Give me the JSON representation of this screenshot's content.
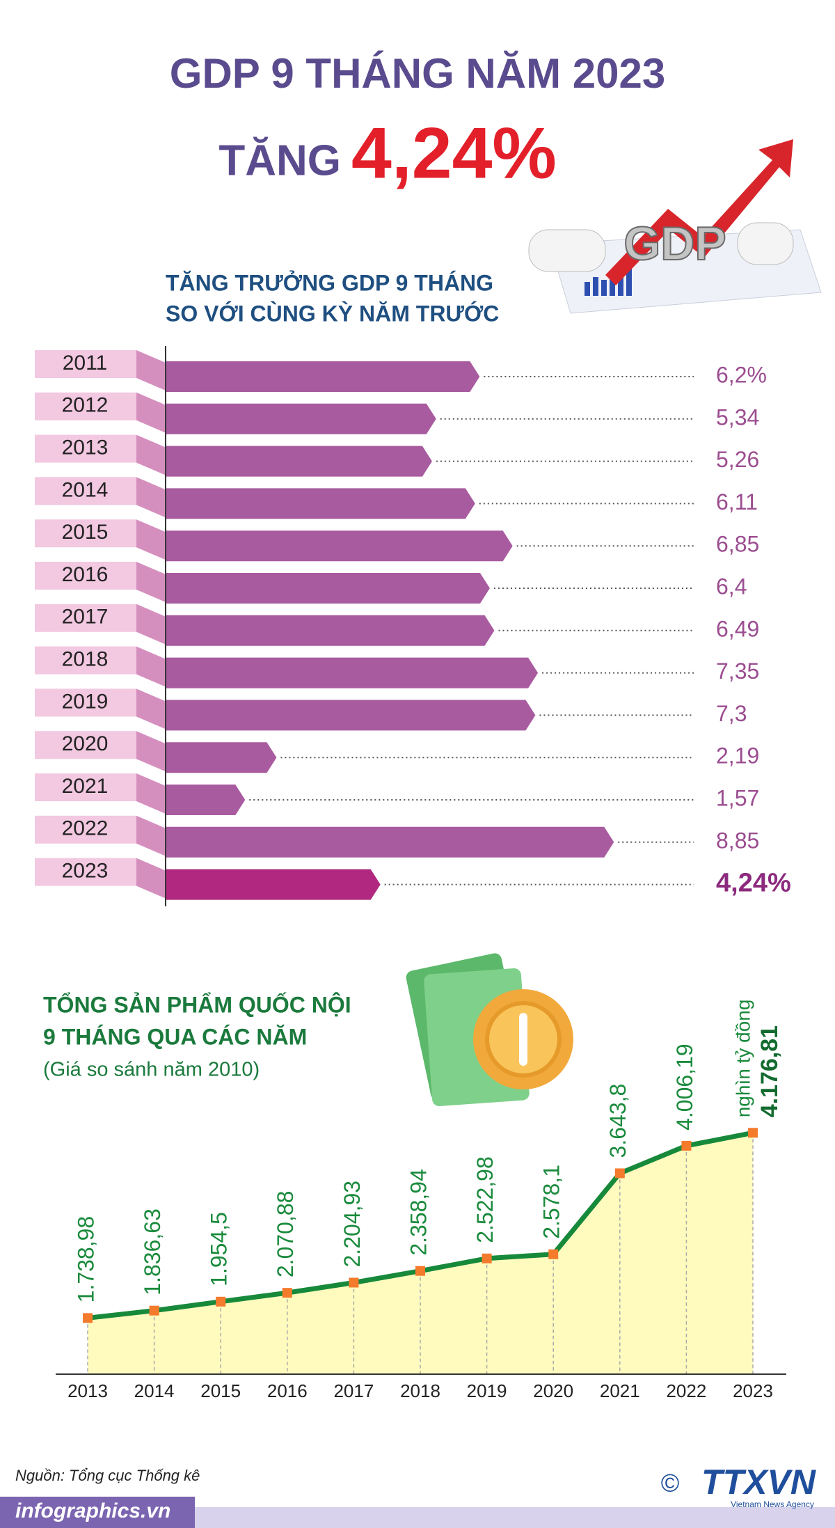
{
  "header": {
    "title": "GDP 9 THÁNG NĂM 2023",
    "tagline": [
      "TĂNG",
      "4,24%"
    ],
    "illustration_text": "GDP"
  },
  "chart_data": [
    {
      "type": "hbar",
      "title": [
        "TĂNG TRƯỞNG GDP 9 THÁNG",
        "SO VỚI CÙNG KỲ NĂM TRƯỚC"
      ],
      "categories": [
        "2011",
        "2012",
        "2013",
        "2014",
        "2015",
        "2016",
        "2017",
        "2018",
        "2019",
        "2020",
        "2021",
        "2022",
        "2023"
      ],
      "values": [
        6.2,
        5.34,
        5.26,
        6.11,
        6.85,
        6.4,
        6.49,
        7.35,
        7.3,
        2.19,
        1.57,
        8.85,
        4.24
      ],
      "value_labels": [
        "6,2%",
        "5,34",
        "5,26",
        "6,11",
        "6,85",
        "6,4",
        "6,49",
        "7,35",
        "7,3",
        "2,19",
        "1,57",
        "8,85",
        "4,24%"
      ],
      "colors": [
        "#a85b9f",
        "#a85b9f",
        "#a85b9f",
        "#a85b9f",
        "#a85b9f",
        "#a85b9f",
        "#a85b9f",
        "#a85b9f",
        "#a85b9f",
        "#a85b9f",
        "#a85b9f",
        "#a85b9f",
        "#b0287f"
      ],
      "xlim": [
        0,
        10
      ]
    },
    {
      "type": "line",
      "title": [
        "TỔNG SẢN PHẨM QUỐC NỘI",
        "9 THÁNG QUA CÁC NĂM"
      ],
      "subtitle": "(Giá so sánh năm 2010)",
      "unit": "nghìn tỷ đồng",
      "categories": [
        "2013",
        "2014",
        "2015",
        "2016",
        "2017",
        "2018",
        "2019",
        "2020",
        "2021",
        "2022",
        "2023"
      ],
      "values": [
        1738.98,
        1836.63,
        1954.5,
        2070.88,
        2204.93,
        2358.94,
        2522.98,
        2578.1,
        3643.8,
        4006.19,
        4176.81
      ],
      "value_labels": [
        "1.738,98",
        "1.836,63",
        "1.954,5",
        "2.070,88",
        "2.204,93",
        "2.358,94",
        "2.522,98",
        "2.578,1",
        "3.643,8",
        "4.006,19",
        "4.176,81"
      ],
      "color": "#17893a",
      "marker_color": "#f47a2c",
      "area_color": "#fffbbe",
      "ylim": [
        1000,
        4500
      ]
    }
  ],
  "footer": {
    "source": "Nguồn: Tổng cục Thống kê",
    "site": "infographics.vn",
    "logo": "TTXVN",
    "logo_symbol": "©",
    "logo_caption": "Vietnam News Agency"
  }
}
